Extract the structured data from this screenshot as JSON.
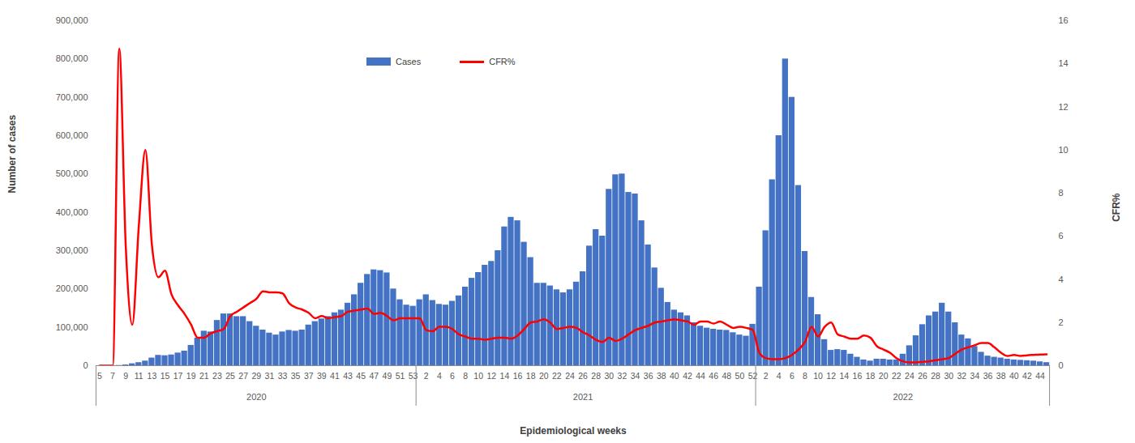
{
  "chart_data": {
    "type": "bar",
    "x_label": "Epidemiological weeks",
    "y_label": "Number of cases",
    "y2_label": "CFR%",
    "categories": [
      "5",
      null,
      "7",
      null,
      "9",
      null,
      "11",
      null,
      "13",
      null,
      "15",
      null,
      "17",
      null,
      "19",
      null,
      "21",
      null,
      "23",
      null,
      "25",
      null,
      "27",
      null,
      "29",
      null,
      "31",
      null,
      "33",
      null,
      "35",
      null,
      "37",
      null,
      "39",
      null,
      "41",
      null,
      "43",
      null,
      "45",
      null,
      "47",
      null,
      "49",
      null,
      "51",
      null,
      "53",
      null,
      "2",
      null,
      "4",
      null,
      "6",
      null,
      "8",
      null,
      "10",
      null,
      "12",
      null,
      "14",
      null,
      "16",
      null,
      "18",
      null,
      "20",
      null,
      "22",
      null,
      "24",
      null,
      "26",
      null,
      "28",
      null,
      "30",
      null,
      "32",
      null,
      "34",
      null,
      "36",
      null,
      "38",
      null,
      "40",
      null,
      "42",
      null,
      "44",
      null,
      "46",
      null,
      "48",
      null,
      "50",
      null,
      "52",
      null,
      "2",
      null,
      "4",
      null,
      "6",
      null,
      "8",
      null,
      "10",
      null,
      "12",
      null,
      "14",
      null,
      "16",
      null,
      "18",
      null,
      "20",
      null,
      "22",
      null,
      "24",
      null,
      "26",
      null,
      "28",
      null,
      "30",
      null,
      "32",
      null,
      "34",
      null,
      "36",
      null,
      "38",
      null,
      "40",
      null,
      "42",
      null,
      "44",
      null
    ],
    "x_groups": [
      {
        "label": "2020",
        "count": 49
      },
      {
        "label": "2021",
        "count": 52
      },
      {
        "label": "2022",
        "count": 45
      }
    ],
    "series": [
      {
        "name": "Cases",
        "type": "bar",
        "color": "#4472C4",
        "values": [
          0,
          0,
          0,
          500,
          2000,
          5000,
          8000,
          12000,
          20000,
          27000,
          26000,
          28000,
          33000,
          38000,
          53000,
          72000,
          90000,
          88000,
          118000,
          135000,
          135000,
          128000,
          128000,
          115000,
          103000,
          93000,
          85000,
          80000,
          88000,
          92000,
          90000,
          93000,
          106000,
          115000,
          122000,
          128000,
          138000,
          145000,
          163000,
          185000,
          215000,
          238000,
          250000,
          248000,
          242000,
          200000,
          172000,
          158000,
          155000,
          172000,
          185000,
          170000,
          160000,
          158000,
          168000,
          182000,
          205000,
          228000,
          243000,
          262000,
          272000,
          300000,
          362000,
          387000,
          378000,
          322000,
          282000,
          215000,
          215000,
          208000,
          198000,
          190000,
          198000,
          218000,
          245000,
          312000,
          355000,
          338000,
          460000,
          498000,
          500000,
          452000,
          448000,
          378000,
          315000,
          255000,
          202000,
          165000,
          145000,
          138000,
          130000,
          112000,
          103000,
          98000,
          95000,
          93000,
          92000,
          86000,
          80000,
          77000,
          108000,
          205000,
          352000,
          485000,
          600000,
          800000,
          700000,
          470000,
          298000,
          178000,
          133000,
          68000,
          40000,
          42000,
          40000,
          30000,
          22000,
          15000,
          12000,
          17000,
          17000,
          15000,
          15000,
          30000,
          52000,
          78000,
          107000,
          130000,
          140000,
          163000,
          140000,
          112000,
          80000,
          70000,
          50000,
          35000,
          25000,
          22000,
          20000,
          17000,
          15000,
          14000,
          13000,
          12000,
          10000,
          8000
        ]
      },
      {
        "name": "CFR%",
        "type": "line",
        "axis": "y2",
        "color": "#FF0000",
        "values": [
          0,
          0,
          0,
          14.7,
          5.5,
          1.9,
          6.5,
          10,
          5.6,
          4.1,
          4.4,
          3.3,
          2.8,
          2.4,
          1.9,
          1.3,
          1.3,
          1.5,
          1.6,
          1.7,
          2.3,
          2.5,
          2.7,
          2.9,
          3.1,
          3.45,
          3.4,
          3.4,
          3.35,
          2.9,
          2.7,
          2.6,
          2.45,
          2.2,
          2.3,
          2.2,
          2.25,
          2.3,
          2.5,
          2.55,
          2.6,
          2.65,
          2.4,
          2.45,
          2.3,
          2.1,
          2.2,
          2.2,
          2.2,
          2.2,
          1.65,
          1.6,
          1.8,
          1.8,
          1.7,
          1.45,
          1.35,
          1.25,
          1.25,
          1.2,
          1.25,
          1.3,
          1.3,
          1.25,
          1.4,
          1.7,
          2.0,
          2.05,
          2.15,
          2.0,
          1.7,
          1.75,
          1.8,
          1.75,
          1.55,
          1.4,
          1.2,
          1.1,
          1.3,
          1.15,
          1.25,
          1.45,
          1.65,
          1.75,
          1.85,
          2.0,
          2.05,
          2.1,
          2.15,
          2.1,
          2.05,
          1.9,
          2.05,
          2.05,
          1.95,
          2.05,
          1.9,
          1.75,
          1.8,
          1.75,
          1.65,
          0.6,
          0.35,
          0.3,
          0.3,
          0.35,
          0.5,
          0.75,
          1.1,
          1.8,
          1.35,
          1.8,
          2.0,
          1.45,
          1.35,
          1.25,
          1.25,
          1.4,
          1.3,
          0.9,
          0.75,
          0.6,
          0.35,
          0.2,
          0.15,
          0.15,
          0.18,
          0.2,
          0.25,
          0.3,
          0.35,
          0.55,
          0.75,
          0.85,
          0.95,
          1.05,
          1.05,
          0.85,
          0.6,
          0.45,
          0.5,
          0.45,
          0.48,
          0.5,
          0.52,
          0.53
        ]
      }
    ],
    "ylim": [
      0,
      900000
    ],
    "yticks": [
      0,
      {
        "value": 100000,
        "label": "100,000"
      },
      {
        "value": 200000,
        "label": "200,000"
      },
      {
        "value": 300000,
        "label": "300,000"
      },
      {
        "value": 400000,
        "label": "400,000"
      },
      {
        "value": 500000,
        "label": "500,000"
      },
      {
        "value": 600000,
        "label": "600,000"
      },
      {
        "value": 700000,
        "label": "700,000"
      },
      {
        "value": 800000,
        "label": "800,000"
      },
      {
        "value": 900000,
        "label": "900,000"
      }
    ],
    "y2lim": [
      0,
      16
    ],
    "y2ticks": [
      0,
      2,
      4,
      6,
      8,
      10,
      12,
      14,
      16
    ],
    "legend": "top"
  }
}
